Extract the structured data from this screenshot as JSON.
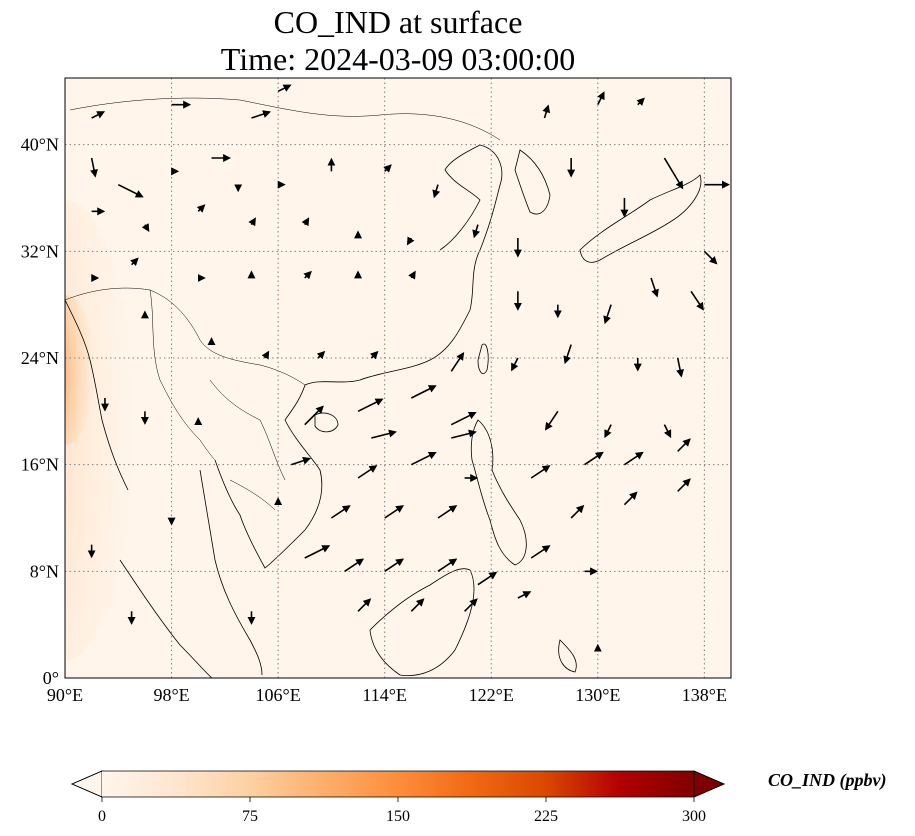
{
  "title": {
    "line1": "CO_IND at surface",
    "line2": "Time: 2024-03-09 03:00:00"
  },
  "map": {
    "lon_range": [
      90,
      140
    ],
    "lat_range": [
      0,
      45
    ],
    "background_color": "#fff5eb",
    "hotspot_color": "#8b0000",
    "lon_ticks": [
      {
        "value": 90,
        "label": "90°E"
      },
      {
        "value": 98,
        "label": "98°E"
      },
      {
        "value": 106,
        "label": "106°E"
      },
      {
        "value": 114,
        "label": "114°E"
      },
      {
        "value": 122,
        "label": "122°E"
      },
      {
        "value": 130,
        "label": "130°E"
      },
      {
        "value": 138,
        "label": "138°E"
      }
    ],
    "lat_ticks": [
      {
        "value": 0,
        "label": "0°"
      },
      {
        "value": 8,
        "label": "8°N"
      },
      {
        "value": 16,
        "label": "16°N"
      },
      {
        "value": 24,
        "label": "24°N"
      },
      {
        "value": 32,
        "label": "32°N"
      },
      {
        "value": 40,
        "label": "40°N"
      }
    ],
    "gridlines": true,
    "wind_vectors": [
      {
        "lon": 92,
        "lat": 42,
        "u": 1,
        "v": 0.5
      },
      {
        "lon": 98,
        "lat": 43,
        "u": 1.5,
        "v": 0
      },
      {
        "lon": 104,
        "lat": 42,
        "u": 1.5,
        "v": 0.5
      },
      {
        "lon": 106,
        "lat": 44,
        "u": 1,
        "v": 0.5
      },
      {
        "lon": 92,
        "lat": 39,
        "u": 0.3,
        "v": -1.5
      },
      {
        "lon": 94,
        "lat": 37,
        "u": 2,
        "v": -1
      },
      {
        "lon": 98,
        "lat": 38,
        "u": 0.5,
        "v": 0
      },
      {
        "lon": 101,
        "lat": 39,
        "u": 1.5,
        "v": 0
      },
      {
        "lon": 103,
        "lat": 37,
        "u": 0,
        "v": -0.5
      },
      {
        "lon": 106,
        "lat": 37,
        "u": 0.5,
        "v": 0
      },
      {
        "lon": 110,
        "lat": 38,
        "u": 0,
        "v": 1
      },
      {
        "lon": 114,
        "lat": 38,
        "u": 0.5,
        "v": 0.5
      },
      {
        "lon": 118,
        "lat": 37,
        "u": -0.3,
        "v": -1
      },
      {
        "lon": 92,
        "lat": 35,
        "u": 1,
        "v": 0
      },
      {
        "lon": 96,
        "lat": 34,
        "u": 0.3,
        "v": -0.5
      },
      {
        "lon": 100,
        "lat": 35,
        "u": 0.5,
        "v": 0.5
      },
      {
        "lon": 104,
        "lat": 34,
        "u": 0.3,
        "v": 0.5
      },
      {
        "lon": 108,
        "lat": 34,
        "u": 0.3,
        "v": 0.5
      },
      {
        "lon": 112,
        "lat": 33,
        "u": 0,
        "v": 0.5
      },
      {
        "lon": 116,
        "lat": 33,
        "u": -0.3,
        "v": -0.5
      },
      {
        "lon": 121,
        "lat": 34,
        "u": -0.3,
        "v": -1
      },
      {
        "lon": 124,
        "lat": 33,
        "u": 0,
        "v": -1.5
      },
      {
        "lon": 92,
        "lat": 30,
        "u": 0.5,
        "v": 0
      },
      {
        "lon": 95,
        "lat": 31,
        "u": 0.5,
        "v": 0.5
      },
      {
        "lon": 100,
        "lat": 30,
        "u": 0.5,
        "v": 0
      },
      {
        "lon": 104,
        "lat": 30,
        "u": 0,
        "v": 0.5
      },
      {
        "lon": 108,
        "lat": 30,
        "u": 0.5,
        "v": 0.5
      },
      {
        "lon": 112,
        "lat": 30,
        "u": 0,
        "v": 0.5
      },
      {
        "lon": 116,
        "lat": 30,
        "u": 0.3,
        "v": 0.5
      },
      {
        "lon": 124,
        "lat": 29,
        "u": 0,
        "v": -1.5
      },
      {
        "lon": 127,
        "lat": 28,
        "u": 0,
        "v": -1
      },
      {
        "lon": 131,
        "lat": 28,
        "u": -0.5,
        "v": -1.5
      },
      {
        "lon": 134,
        "lat": 30,
        "u": 0.5,
        "v": -1.5
      },
      {
        "lon": 137,
        "lat": 29,
        "u": 1,
        "v": -1.5
      },
      {
        "lon": 132,
        "lat": 36,
        "u": 0,
        "v": -1.5
      },
      {
        "lon": 135,
        "lat": 39,
        "u": 1.5,
        "v": -2.5
      },
      {
        "lon": 138,
        "lat": 37,
        "u": 2,
        "v": 0
      },
      {
        "lon": 138,
        "lat": 32,
        "u": 1,
        "v": -1
      },
      {
        "lon": 128,
        "lat": 39,
        "u": 0,
        "v": -1.5
      },
      {
        "lon": 126,
        "lat": 42,
        "u": 0.3,
        "v": 1
      },
      {
        "lon": 130,
        "lat": 43,
        "u": 0.5,
        "v": 1
      },
      {
        "lon": 133,
        "lat": 43,
        "u": 0.5,
        "v": 0.5
      },
      {
        "lon": 96,
        "lat": 27,
        "u": 0,
        "v": 0.5
      },
      {
        "lon": 101,
        "lat": 25,
        "u": 0,
        "v": 0.5
      },
      {
        "lon": 105,
        "lat": 24,
        "u": 0.3,
        "v": 0.5
      },
      {
        "lon": 109,
        "lat": 24,
        "u": 0.5,
        "v": 0.5
      },
      {
        "lon": 113,
        "lat": 24,
        "u": 0.5,
        "v": 0.5
      },
      {
        "lon": 119,
        "lat": 23,
        "u": 1,
        "v": 1.5
      },
      {
        "lon": 124,
        "lat": 24,
        "u": -0.5,
        "v": -1
      },
      {
        "lon": 128,
        "lat": 25,
        "u": -0.5,
        "v": -1.5
      },
      {
        "lon": 133,
        "lat": 24,
        "u": 0,
        "v": -1
      },
      {
        "lon": 136,
        "lat": 24,
        "u": 0.3,
        "v": -1.5
      },
      {
        "lon": 93,
        "lat": 21,
        "u": 0,
        "v": -1
      },
      {
        "lon": 96,
        "lat": 20,
        "u": 0,
        "v": -1
      },
      {
        "lon": 100,
        "lat": 19,
        "u": 0,
        "v": 0.5
      },
      {
        "lon": 108,
        "lat": 19,
        "u": 1.5,
        "v": 1.5
      },
      {
        "lon": 112,
        "lat": 20,
        "u": 2,
        "v": 1
      },
      {
        "lon": 116,
        "lat": 21,
        "u": 2,
        "v": 1
      },
      {
        "lon": 119,
        "lat": 19,
        "u": 2,
        "v": 1
      },
      {
        "lon": 113,
        "lat": 18,
        "u": 2,
        "v": 0.5
      },
      {
        "lon": 116,
        "lat": 16,
        "u": 2,
        "v": 1
      },
      {
        "lon": 119,
        "lat": 18,
        "u": 2,
        "v": 0.5
      },
      {
        "lon": 127,
        "lat": 20,
        "u": -1,
        "v": -1.5
      },
      {
        "lon": 131,
        "lat": 19,
        "u": -0.5,
        "v": -1
      },
      {
        "lon": 135,
        "lat": 19,
        "u": 0.5,
        "v": -1
      },
      {
        "lon": 107,
        "lat": 16,
        "u": 1.5,
        "v": 0.5
      },
      {
        "lon": 112,
        "lat": 15,
        "u": 1.5,
        "v": 1
      },
      {
        "lon": 120,
        "lat": 15,
        "u": 1,
        "v": 0
      },
      {
        "lon": 125,
        "lat": 15,
        "u": 1.5,
        "v": 1
      },
      {
        "lon": 129,
        "lat": 16,
        "u": 1.5,
        "v": 1
      },
      {
        "lon": 132,
        "lat": 16,
        "u": 1.5,
        "v": 1
      },
      {
        "lon": 136,
        "lat": 17,
        "u": 1,
        "v": 1
      },
      {
        "lon": 106,
        "lat": 13,
        "u": 0,
        "v": 0.5
      },
      {
        "lon": 110,
        "lat": 12,
        "u": 1.5,
        "v": 1
      },
      {
        "lon": 114,
        "lat": 12,
        "u": 1.5,
        "v": 1
      },
      {
        "lon": 118,
        "lat": 12,
        "u": 1.5,
        "v": 1
      },
      {
        "lon": 128,
        "lat": 12,
        "u": 1,
        "v": 1
      },
      {
        "lon": 132,
        "lat": 13,
        "u": 1,
        "v": 1
      },
      {
        "lon": 136,
        "lat": 14,
        "u": 1,
        "v": 1
      },
      {
        "lon": 108,
        "lat": 9,
        "u": 2,
        "v": 1
      },
      {
        "lon": 111,
        "lat": 8,
        "u": 1.5,
        "v": 1
      },
      {
        "lon": 114,
        "lat": 8,
        "u": 1.5,
        "v": 1
      },
      {
        "lon": 118,
        "lat": 8,
        "u": 1.5,
        "v": 1
      },
      {
        "lon": 121,
        "lat": 7,
        "u": 1.5,
        "v": 1
      },
      {
        "lon": 125,
        "lat": 9,
        "u": 1.5,
        "v": 1
      },
      {
        "lon": 129,
        "lat": 8,
        "u": 1,
        "v": 0
      },
      {
        "lon": 112,
        "lat": 5,
        "u": 1,
        "v": 1
      },
      {
        "lon": 116,
        "lat": 5,
        "u": 1,
        "v": 1
      },
      {
        "lon": 120,
        "lat": 5,
        "u": 1,
        "v": 1
      },
      {
        "lon": 124,
        "lat": 6,
        "u": 1,
        "v": 0.5
      },
      {
        "lon": 130,
        "lat": 2,
        "u": 0,
        "v": 0.5
      },
      {
        "lon": 92,
        "lat": 10,
        "u": 0,
        "v": -1
      },
      {
        "lon": 95,
        "lat": 5,
        "u": 0,
        "v": -1
      },
      {
        "lon": 104,
        "lat": 5,
        "u": 0,
        "v": -1
      },
      {
        "lon": 98,
        "lat": 12,
        "u": 0,
        "v": -0.5
      }
    ]
  },
  "colorbar": {
    "label": "CO_IND (ppbv)",
    "min": 0,
    "max": 300,
    "extend": "both",
    "stops": [
      "#fff5eb",
      "#fee6ce",
      "#fdd0a2",
      "#fdae6b",
      "#fd8d3c",
      "#f16913",
      "#d94801",
      "#b30000",
      "#7f0000"
    ],
    "ticks": [
      {
        "value": 0,
        "label": "0"
      },
      {
        "value": 75,
        "label": "75"
      },
      {
        "value": 150,
        "label": "150"
      },
      {
        "value": 225,
        "label": "225"
      },
      {
        "value": 300,
        "label": "300"
      }
    ]
  }
}
